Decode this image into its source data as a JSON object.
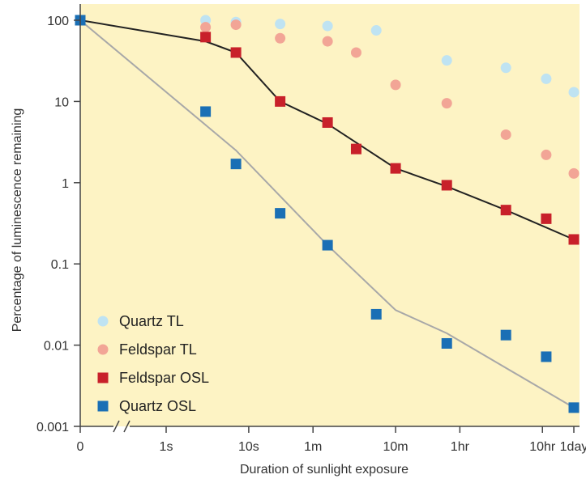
{
  "chart_data": {
    "type": "scatter",
    "title": "",
    "xlabel": "Duration of sunlight exposure",
    "ylabel": "Percentage of luminescence remaining",
    "yscale": "log",
    "ylim": [
      0.001,
      100
    ],
    "xscale": "log (seconds), broken axis after 0",
    "xlim": [
      "0",
      "1day"
    ],
    "grid": false,
    "legend_position": "bottom-left",
    "background_color": "#fdf3c4",
    "y_ticks": [
      {
        "label": "100",
        "value": 100
      },
      {
        "label": "10",
        "value": 10
      },
      {
        "label": "1",
        "value": 1
      },
      {
        "label": "0.1",
        "value": 0.1
      },
      {
        "label": "0.01",
        "value": 0.01
      },
      {
        "label": "0.001",
        "value": 0.001
      }
    ],
    "x_ticks": [
      {
        "label": "0",
        "seconds": 0
      },
      {
        "label": "1s",
        "seconds": 1
      },
      {
        "label": "10s",
        "seconds": 10
      },
      {
        "label": "1m",
        "seconds": 60
      },
      {
        "label": "10m",
        "seconds": 600
      },
      {
        "label": "1hr",
        "seconds": 3600
      },
      {
        "label": "10hr",
        "seconds": 36000
      },
      {
        "label": "1day",
        "seconds": 86400
      }
    ],
    "series": [
      {
        "name": "Quartz TL",
        "marker": "circle",
        "color": "#bfe3f2",
        "line": false,
        "points": [
          {
            "x": 0,
            "y": 100
          },
          {
            "x": 3,
            "y": 100
          },
          {
            "x": 7,
            "y": 95
          },
          {
            "x": 24,
            "y": 90
          },
          {
            "x": 90,
            "y": 85
          },
          {
            "x": 350,
            "y": 75
          },
          {
            "x": 2500,
            "y": 32
          },
          {
            "x": 13000,
            "y": 26
          },
          {
            "x": 40000,
            "y": 19
          },
          {
            "x": 86400,
            "y": 13
          }
        ]
      },
      {
        "name": "Feldspar TL",
        "marker": "circle",
        "color": "#f2a596",
        "line": false,
        "points": [
          {
            "x": 0,
            "y": 100
          },
          {
            "x": 3,
            "y": 82
          },
          {
            "x": 7,
            "y": 88
          },
          {
            "x": 24,
            "y": 60
          },
          {
            "x": 90,
            "y": 55
          },
          {
            "x": 200,
            "y": 40
          },
          {
            "x": 600,
            "y": 16
          },
          {
            "x": 2500,
            "y": 9.5
          },
          {
            "x": 13000,
            "y": 3.9
          },
          {
            "x": 40000,
            "y": 2.2
          },
          {
            "x": 86400,
            "y": 1.3
          }
        ]
      },
      {
        "name": "Feldspar OSL",
        "marker": "square",
        "color": "#c8202a",
        "line": true,
        "line_color": "#222222",
        "points": [
          {
            "x": 0,
            "y": 100
          },
          {
            "x": 3,
            "y": 62
          },
          {
            "x": 7,
            "y": 40
          },
          {
            "x": 24,
            "y": 10
          },
          {
            "x": 90,
            "y": 5.5
          },
          {
            "x": 200,
            "y": 2.6
          },
          {
            "x": 600,
            "y": 1.5
          },
          {
            "x": 2500,
            "y": 0.93
          },
          {
            "x": 13000,
            "y": 0.46
          },
          {
            "x": 40000,
            "y": 0.36
          },
          {
            "x": 86400,
            "y": 0.2
          }
        ]
      },
      {
        "name": "Quartz OSL",
        "marker": "square",
        "color": "#1a6fb5",
        "line": true,
        "line_color": "#a8a8a8",
        "points": [
          {
            "x": 0,
            "y": 100
          },
          {
            "x": 3,
            "y": 7.5
          },
          {
            "x": 7,
            "y": 1.7
          },
          {
            "x": 24,
            "y": 0.42
          },
          {
            "x": 90,
            "y": 0.17
          },
          {
            "x": 350,
            "y": 0.024
          },
          {
            "x": 2500,
            "y": 0.0105
          },
          {
            "x": 13000,
            "y": 0.0133
          },
          {
            "x": 40000,
            "y": 0.0072
          },
          {
            "x": 86400,
            "y": 0.0017
          }
        ],
        "fit_line": [
          {
            "x": 0,
            "y": 100
          },
          {
            "x": 7,
            "y": 2.5
          },
          {
            "x": 90,
            "y": 0.17
          },
          {
            "x": 600,
            "y": 0.027
          },
          {
            "x": 2500,
            "y": 0.014
          },
          {
            "x": 86400,
            "y": 0.0017
          }
        ]
      }
    ],
    "feldspar_osl_fit_line": [
      {
        "x": 0,
        "y": 100
      },
      {
        "x": 3,
        "y": 55
      },
      {
        "x": 7,
        "y": 40
      },
      {
        "x": 24,
        "y": 10
      },
      {
        "x": 90,
        "y": 5.3
      },
      {
        "x": 600,
        "y": 1.5
      },
      {
        "x": 2500,
        "y": 0.9
      },
      {
        "x": 13000,
        "y": 0.46
      },
      {
        "x": 86400,
        "y": 0.2
      }
    ]
  }
}
